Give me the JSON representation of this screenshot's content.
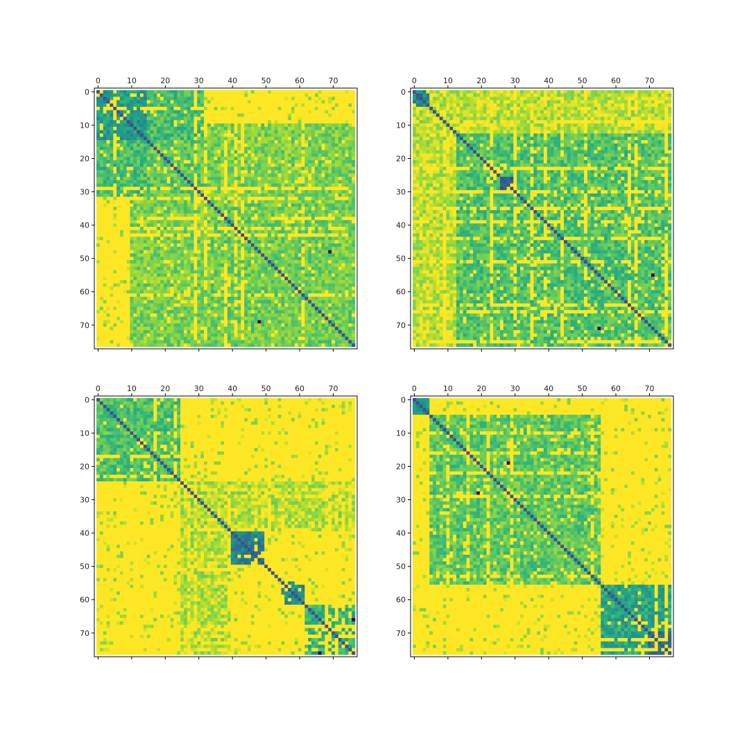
{
  "figure": {
    "description_visible": false
  },
  "chart_data": [
    {
      "type": "heatmap",
      "panel": "top-left",
      "size": 77,
      "x_ticks": [
        "0",
        "10",
        "20",
        "30",
        "40",
        "50",
        "60",
        "70"
      ],
      "y_ticks": [
        "0",
        "10",
        "20",
        "30",
        "40",
        "50",
        "60",
        "70"
      ],
      "tick_values": [
        0,
        10,
        20,
        30,
        40,
        50,
        60,
        70
      ],
      "x_axis_position": "top",
      "colormap": "viridis",
      "diagonal_value": 0.25,
      "background_value": 1.0,
      "blocks": [
        {
          "r": [
            0,
            4
          ],
          "c": [
            0,
            4
          ],
          "v": 0.25
        },
        {
          "r": [
            0,
            15
          ],
          "c": [
            0,
            15
          ],
          "v": 0.55
        },
        {
          "r": [
            0,
            15
          ],
          "c": [
            15,
            32
          ],
          "v": 0.7
        },
        {
          "r": [
            15,
            33
          ],
          "c": [
            0,
            33
          ],
          "v": 0.75
        },
        {
          "r": [
            10,
            33
          ],
          "c": [
            33,
            77
          ],
          "v": 0.8
        },
        {
          "r": [
            33,
            77
          ],
          "c": [
            11,
            77
          ],
          "v": 0.78
        },
        {
          "r": [
            48,
            77
          ],
          "c": [
            0,
            11
          ],
          "v": 0.9
        }
      ],
      "outliers": [
        {
          "r": 48,
          "c": 69,
          "v": 0.0
        },
        {
          "r": 69,
          "c": 48,
          "v": 0.0
        }
      ],
      "seed": 11
    },
    {
      "type": "heatmap",
      "panel": "top-right",
      "size": 77,
      "x_ticks": [
        "0",
        "10",
        "20",
        "30",
        "40",
        "50",
        "60",
        "70"
      ],
      "y_ticks": [
        "0",
        "10",
        "20",
        "30",
        "40",
        "50",
        "60",
        "70"
      ],
      "tick_values": [
        0,
        10,
        20,
        30,
        40,
        50,
        60,
        70
      ],
      "x_axis_position": "top",
      "colormap": "viridis",
      "diagonal_value": 0.25,
      "background_value": 1.0,
      "blocks": [
        {
          "r": [
            0,
            5
          ],
          "c": [
            0,
            5
          ],
          "v": 0.45
        },
        {
          "r": [
            0,
            13
          ],
          "c": [
            5,
            77
          ],
          "v": 0.9
        },
        {
          "r": [
            13,
            77
          ],
          "c": [
            13,
            77
          ],
          "v": 0.72
        },
        {
          "r": [
            13,
            77
          ],
          "c": [
            0,
            13
          ],
          "v": 0.92
        },
        {
          "r": [
            26,
            30
          ],
          "c": [
            26,
            30
          ],
          "v": 0.3
        }
      ],
      "outliers": [
        {
          "r": 55,
          "c": 71,
          "v": 0.0
        },
        {
          "r": 71,
          "c": 55,
          "v": 0.0
        }
      ],
      "seed": 23
    },
    {
      "type": "heatmap",
      "panel": "bottom-left",
      "size": 77,
      "x_ticks": [
        "0",
        "10",
        "20",
        "30",
        "40",
        "50",
        "60",
        "70"
      ],
      "y_ticks": [
        "0",
        "10",
        "20",
        "30",
        "40",
        "50",
        "60",
        "70"
      ],
      "tick_values": [
        0,
        10,
        20,
        30,
        40,
        50,
        60,
        70
      ],
      "x_axis_position": "top",
      "colormap": "viridis",
      "diagonal_value": 0.25,
      "background_value": 1.0,
      "blocks": [
        {
          "r": [
            0,
            25
          ],
          "c": [
            0,
            25
          ],
          "v": 0.72
        },
        {
          "r": [
            40,
            50
          ],
          "c": [
            40,
            50
          ],
          "v": 0.45
        },
        {
          "r": [
            40,
            50
          ],
          "c": [
            0,
            33
          ],
          "v": 0.72
        },
        {
          "r": [
            55,
            62
          ],
          "c": [
            55,
            62
          ],
          "v": 0.5
        },
        {
          "r": [
            62,
            77
          ],
          "c": [
            62,
            77
          ],
          "v": 0.65
        },
        {
          "r": [
            25,
            40
          ],
          "c": [
            0,
            77
          ],
          "v": 0.88
        }
      ],
      "outliers": [
        {
          "r": 66,
          "c": 76,
          "v": 0.0
        },
        {
          "r": 76,
          "c": 66,
          "v": 0.0
        }
      ],
      "seed": 37
    },
    {
      "type": "heatmap",
      "panel": "bottom-right",
      "size": 77,
      "x_ticks": [
        "0",
        "10",
        "20",
        "30",
        "40",
        "50",
        "60",
        "70"
      ],
      "y_ticks": [
        "0",
        "10",
        "20",
        "30",
        "40",
        "50",
        "60",
        "70"
      ],
      "tick_values": [
        0,
        10,
        20,
        30,
        40,
        50,
        60,
        70
      ],
      "x_axis_position": "top",
      "colormap": "viridis",
      "diagonal_value": 0.25,
      "background_value": 1.0,
      "blocks": [
        {
          "r": [
            0,
            5
          ],
          "c": [
            0,
            5
          ],
          "v": 0.5
        },
        {
          "r": [
            5,
            56
          ],
          "c": [
            5,
            56
          ],
          "v": 0.75
        },
        {
          "r": [
            56,
            77
          ],
          "c": [
            56,
            77
          ],
          "v": 0.6
        },
        {
          "r": [
            70,
            77
          ],
          "c": [
            70,
            77
          ],
          "v": 0.4
        }
      ],
      "outliers": [
        {
          "r": 19,
          "c": 28,
          "v": 0.0
        },
        {
          "r": 28,
          "c": 19,
          "v": 0.0
        }
      ],
      "seed": 53
    }
  ]
}
